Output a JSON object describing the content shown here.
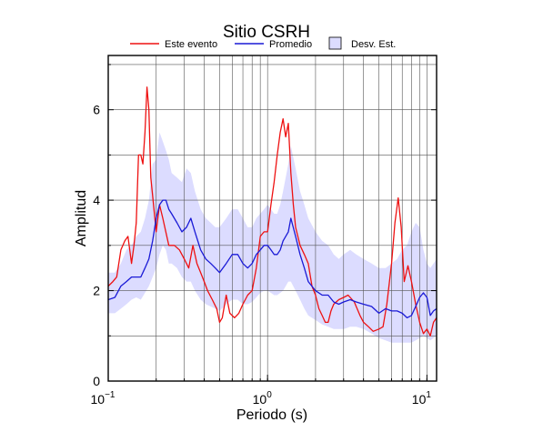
{
  "chart_data": {
    "type": "line",
    "title": "Sitio CSRH",
    "xlabel": "Periodo (s)",
    "ylabel": "Amplitud",
    "x_scale": "log",
    "xlim": [
      0.1,
      11.5
    ],
    "ylim": [
      0,
      7.2
    ],
    "y_ticks": [
      0,
      2,
      4,
      6
    ],
    "y_tick_labels": [
      "0",
      "2",
      "4",
      "6"
    ],
    "x_ticks": [
      0.1,
      1,
      10
    ],
    "x_tick_labels": [
      {
        "base": "10",
        "exp": "−1"
      },
      {
        "base": "10",
        "exp": "0"
      },
      {
        "base": "10",
        "exp": "1"
      }
    ],
    "grid": true,
    "legend": [
      {
        "label": "Este evento",
        "color": "#ee1111",
        "kind": "line"
      },
      {
        "label": "Promedio",
        "color": "#1a1ad6",
        "kind": "line"
      },
      {
        "label": "Desv. Est.",
        "color": "#dcdcff",
        "kind": "patch"
      }
    ],
    "series": [
      {
        "name": "Este evento",
        "color": "#ee1111",
        "x": [
          0.1,
          0.107,
          0.113,
          0.12,
          0.127,
          0.133,
          0.14,
          0.145,
          0.15,
          0.155,
          0.16,
          0.165,
          0.17,
          0.175,
          0.18,
          0.185,
          0.19,
          0.2,
          0.21,
          0.22,
          0.24,
          0.26,
          0.28,
          0.3,
          0.32,
          0.34,
          0.36,
          0.38,
          0.4,
          0.42,
          0.45,
          0.48,
          0.5,
          0.52,
          0.55,
          0.58,
          0.62,
          0.66,
          0.7,
          0.75,
          0.8,
          0.85,
          0.9,
          0.95,
          1.0,
          1.05,
          1.1,
          1.15,
          1.2,
          1.25,
          1.3,
          1.35,
          1.4,
          1.45,
          1.5,
          1.6,
          1.7,
          1.8,
          1.9,
          2.0,
          2.1,
          2.2,
          2.3,
          2.4,
          2.5,
          2.6,
          2.8,
          3.0,
          3.2,
          3.5,
          3.8,
          4.0,
          4.3,
          4.6,
          5.0,
          5.3,
          5.6,
          6.0,
          6.3,
          6.6,
          6.9,
          7.2,
          7.6,
          8.0,
          8.5,
          9.0,
          9.5,
          10.0,
          10.5,
          11.0,
          11.5
        ],
        "y": [
          2.1,
          2.2,
          2.3,
          2.9,
          3.1,
          3.2,
          2.6,
          3.0,
          3.5,
          5.0,
          5.0,
          4.8,
          5.5,
          6.5,
          6.0,
          4.5,
          4.1,
          3.3,
          3.9,
          3.6,
          3.0,
          3.0,
          2.9,
          2.7,
          2.5,
          3.0,
          2.6,
          2.4,
          2.2,
          2.0,
          1.8,
          1.6,
          1.3,
          1.4,
          1.9,
          1.5,
          1.4,
          1.5,
          1.7,
          1.9,
          2.0,
          2.5,
          3.2,
          3.3,
          3.3,
          3.9,
          4.4,
          5.0,
          5.5,
          5.8,
          5.4,
          5.7,
          4.6,
          3.9,
          3.4,
          3.0,
          2.8,
          2.6,
          2.1,
          1.9,
          1.6,
          1.45,
          1.3,
          1.3,
          1.55,
          1.7,
          1.8,
          1.85,
          1.9,
          1.75,
          1.45,
          1.3,
          1.2,
          1.1,
          1.15,
          1.2,
          1.7,
          2.6,
          3.5,
          4.05,
          3.4,
          2.2,
          2.55,
          2.2,
          1.7,
          1.3,
          1.05,
          1.15,
          1.0,
          1.3,
          1.4
        ]
      },
      {
        "name": "Promedio",
        "color": "#1a1ad6",
        "x": [
          0.1,
          0.11,
          0.12,
          0.13,
          0.14,
          0.15,
          0.16,
          0.17,
          0.18,
          0.19,
          0.2,
          0.21,
          0.22,
          0.23,
          0.24,
          0.25,
          0.27,
          0.29,
          0.31,
          0.33,
          0.35,
          0.38,
          0.41,
          0.44,
          0.47,
          0.5,
          0.55,
          0.6,
          0.65,
          0.7,
          0.75,
          0.8,
          0.85,
          0.9,
          0.95,
          1.0,
          1.05,
          1.1,
          1.15,
          1.2,
          1.25,
          1.3,
          1.35,
          1.4,
          1.5,
          1.6,
          1.7,
          1.8,
          2.0,
          2.2,
          2.4,
          2.6,
          2.8,
          3.0,
          3.3,
          3.6,
          4.0,
          4.5,
          5.0,
          5.5,
          6.0,
          6.5,
          7.0,
          7.5,
          8.0,
          8.5,
          9.0,
          9.5,
          10.0,
          10.5,
          11.0,
          11.5
        ],
        "y": [
          1.8,
          1.85,
          2.1,
          2.2,
          2.3,
          2.3,
          2.3,
          2.5,
          2.7,
          3.1,
          3.6,
          3.9,
          4.0,
          4.0,
          3.8,
          3.7,
          3.5,
          3.3,
          3.4,
          3.6,
          3.3,
          2.9,
          2.7,
          2.6,
          2.5,
          2.4,
          2.6,
          2.8,
          2.8,
          2.6,
          2.5,
          2.6,
          2.8,
          2.9,
          3.0,
          3.0,
          2.9,
          2.8,
          2.8,
          2.9,
          3.1,
          3.2,
          3.3,
          3.6,
          3.2,
          2.8,
          2.5,
          2.2,
          2.0,
          1.9,
          1.9,
          1.75,
          1.7,
          1.75,
          1.8,
          1.75,
          1.7,
          1.65,
          1.5,
          1.6,
          1.55,
          1.55,
          1.5,
          1.4,
          1.45,
          1.65,
          1.85,
          1.95,
          1.85,
          1.45,
          1.55,
          1.6
        ]
      }
    ],
    "band": {
      "name": "Desv. Est.",
      "color": "#dcdcff",
      "x": [
        0.1,
        0.11,
        0.12,
        0.13,
        0.14,
        0.15,
        0.16,
        0.17,
        0.18,
        0.19,
        0.2,
        0.21,
        0.22,
        0.23,
        0.24,
        0.25,
        0.27,
        0.29,
        0.31,
        0.33,
        0.35,
        0.38,
        0.41,
        0.44,
        0.47,
        0.5,
        0.55,
        0.6,
        0.65,
        0.7,
        0.75,
        0.8,
        0.85,
        0.9,
        0.95,
        1.0,
        1.05,
        1.1,
        1.15,
        1.2,
        1.25,
        1.3,
        1.35,
        1.4,
        1.5,
        1.6,
        1.7,
        1.8,
        2.0,
        2.2,
        2.4,
        2.6,
        2.8,
        3.0,
        3.3,
        3.6,
        4.0,
        4.5,
        5.0,
        5.5,
        6.0,
        6.5,
        7.0,
        7.5,
        8.0,
        8.5,
        9.0,
        9.5,
        10.0,
        10.5,
        11.0,
        11.5
      ],
      "lower": [
        1.5,
        1.5,
        1.6,
        1.7,
        1.8,
        1.85,
        1.8,
        1.95,
        2.1,
        2.3,
        2.5,
        2.8,
        3.0,
        2.9,
        2.6,
        2.6,
        2.5,
        2.3,
        2.2,
        2.2,
        2.0,
        1.8,
        1.7,
        1.65,
        1.6,
        1.55,
        1.7,
        1.8,
        1.8,
        1.7,
        1.7,
        1.75,
        1.85,
        1.95,
        2.0,
        2.0,
        1.95,
        1.9,
        1.9,
        1.95,
        2.0,
        2.1,
        2.2,
        2.2,
        2.0,
        1.8,
        1.6,
        1.45,
        1.35,
        1.25,
        1.2,
        1.15,
        1.15,
        1.15,
        1.2,
        1.2,
        1.15,
        1.05,
        0.95,
        0.9,
        0.85,
        0.85,
        0.85,
        0.85,
        0.85,
        0.9,
        0.95,
        1.0,
        0.95,
        0.9,
        0.95,
        1.0
      ],
      "upper": [
        2.4,
        2.4,
        2.6,
        2.9,
        3.0,
        3.2,
        3.3,
        3.6,
        4.0,
        4.8,
        4.9,
        5.5,
        5.3,
        5.1,
        4.9,
        4.6,
        4.5,
        4.4,
        4.7,
        4.6,
        4.2,
        3.8,
        3.6,
        3.5,
        3.4,
        3.4,
        3.6,
        3.8,
        3.8,
        3.6,
        3.4,
        3.4,
        3.6,
        3.7,
        3.8,
        3.9,
        3.8,
        3.7,
        3.7,
        3.9,
        4.2,
        4.5,
        4.8,
        5.2,
        4.7,
        4.2,
        3.9,
        3.6,
        3.3,
        3.1,
        3.0,
        2.8,
        2.7,
        2.8,
        2.9,
        2.8,
        2.7,
        2.6,
        2.5,
        2.5,
        2.6,
        2.7,
        2.9,
        3.0,
        3.3,
        3.5,
        3.4,
        2.9,
        2.6,
        2.5,
        2.6,
        2.7
      ]
    }
  }
}
